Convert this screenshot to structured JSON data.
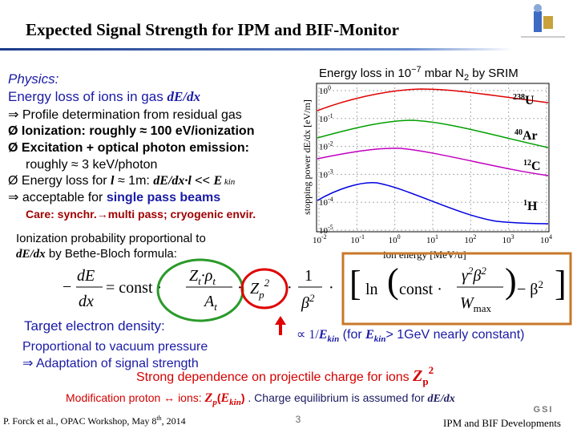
{
  "header": {
    "title": "Expected Signal Strength for IPM and BIF-Monitor"
  },
  "physics": {
    "heading": "Physics:",
    "line1": [
      "Energy loss of ions in gas ",
      "dE/dx"
    ],
    "bullets": [
      "⇒ Profile determination from residual gas",
      "Ø Ionization: roughly ≈ 100 eV/ionization",
      "Ø Excitation + optical photon emission:",
      "roughly ≈ 3 keV/photon"
    ],
    "energy_loss": [
      "Ø Energy loss for ",
      "l",
      " ≈ 1m: ",
      "dE/dx·l",
      " << ",
      "E",
      " kin"
    ],
    "acceptable": [
      "⇒ acceptable for ",
      "single pass beams"
    ],
    "care": [
      "Care:",
      " synchr.→multi pass; cryogenic envir."
    ]
  },
  "plot": {
    "title": [
      "Energy loss in 10",
      "−7",
      " mbar N",
      "2",
      " by SRIM"
    ],
    "ylabel": "stopping power dE/dx [eV/m]",
    "xlabel": "ion energy [MeV/u]",
    "tick_base": "10",
    "yticks": [
      "0",
      "-1",
      "-2",
      "-3",
      "-4",
      "-5"
    ],
    "xticks": [
      "-2",
      "-1",
      "0",
      "1",
      "2",
      "3",
      "4"
    ],
    "curves": [
      {
        "mass": "238",
        "name": "U"
      },
      {
        "mass": "40",
        "name": "Ar"
      },
      {
        "mass": "12",
        "name": "C"
      },
      {
        "mass": "1",
        "name": "H"
      }
    ]
  },
  "ionization": [
    "Ionization probability proportional to",
    "dE/dx",
    " by Bethe-Bloch formula:"
  ],
  "formula": [
    "−",
    "dE",
    "dx",
    "= const ·",
    "Z",
    "t",
    "·",
    "ρ",
    "t",
    "A",
    "t",
    "·",
    "Z",
    "p",
    "2",
    "·",
    "1",
    "β",
    "2",
    "·",
    "ln",
    "const ·",
    "γ",
    "2",
    "β",
    "2",
    "W",
    "max",
    "− β",
    "2"
  ],
  "target": [
    "Target electron density:",
    "Proportional to vacuum pressure",
    "⇒ Adaptation of signal strength"
  ],
  "ekin": [
    "∝ 1/",
    "E",
    "kin",
    "  (for ",
    "E",
    "kin",
    "> 1GeV nearly constant)"
  ],
  "strong": [
    "Strong dependence on projectile charge for ions  ",
    "Z",
    "p",
    "2"
  ],
  "modification": [
    "Modification proton ↔ ions: ",
    "Z",
    "p",
    "(",
    "E",
    "kin",
    ")",
    " . Charge equilibrium is assumed for  ",
    "dE/dx"
  ],
  "footer": {
    "author": [
      "P. Forck et al., OPAC Workshop, May 8",
      "th",
      ", 2014"
    ],
    "page": "3",
    "right": "IPM and BIF Developments",
    "logo": "GSI"
  }
}
